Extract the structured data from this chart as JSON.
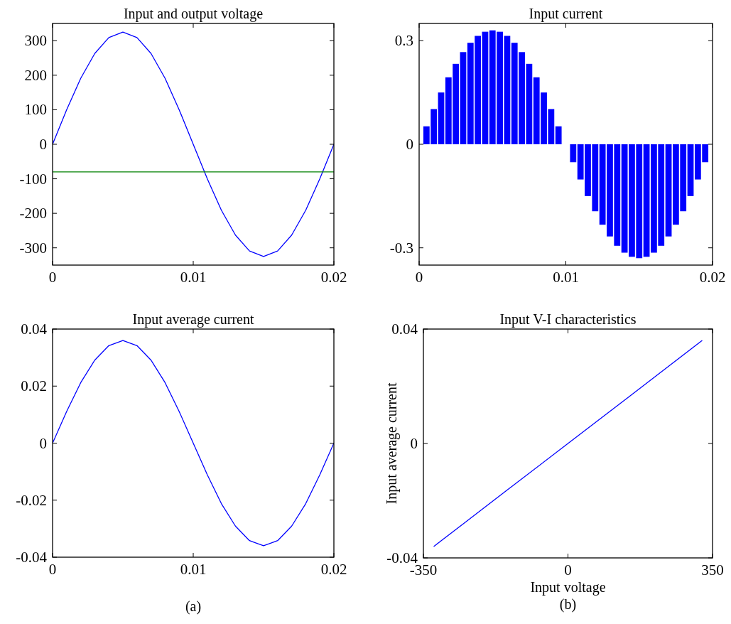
{
  "chart_data": [
    {
      "type": "line",
      "title": "Input and output voltage",
      "x": [
        0,
        0.001,
        0.002,
        0.003,
        0.004,
        0.005,
        0.006,
        0.007,
        0.008,
        0.009,
        0.01,
        0.011,
        0.012,
        0.013,
        0.014,
        0.015,
        0.016,
        0.017,
        0.018,
        0.019,
        0.02
      ],
      "xlim": [
        0,
        0.02
      ],
      "xticks": [
        0,
        0.01,
        0.02
      ],
      "ylim": [
        -350,
        350
      ],
      "yticks": [
        -300,
        -200,
        -100,
        0,
        100,
        200,
        300
      ],
      "series": [
        {
          "color": "#0000ff",
          "values": [
            0,
            100,
            191,
            263,
            309,
            325,
            309,
            263,
            191,
            100,
            0,
            -100,
            -191,
            -263,
            -309,
            -325,
            -309,
            -263,
            -191,
            -100,
            0
          ]
        },
        {
          "color": "#008000",
          "x": [
            0,
            0.02
          ],
          "values": [
            -80,
            -80
          ]
        }
      ]
    },
    {
      "type": "bar",
      "title": "Input current",
      "x": [
        0,
        0.0005,
        0.001,
        0.0015,
        0.002,
        0.0025,
        0.003,
        0.0035,
        0.004,
        0.0045,
        0.005,
        0.0055,
        0.006,
        0.0065,
        0.007,
        0.0075,
        0.008,
        0.0085,
        0.009,
        0.0095,
        0.01,
        0.0105,
        0.011,
        0.0115,
        0.012,
        0.0125,
        0.013,
        0.0135,
        0.014,
        0.0145,
        0.015,
        0.0155,
        0.016,
        0.0165,
        0.017,
        0.0175,
        0.018,
        0.0185,
        0.019,
        0.0195,
        0.02
      ],
      "xlim": [
        0,
        0.02
      ],
      "xticks": [
        0,
        0.01,
        0.02
      ],
      "ylim": [
        -0.35,
        0.35
      ],
      "yticks": [
        -0.3,
        0,
        0.3
      ],
      "series": [
        {
          "color": "#0000ff",
          "values": [
            0,
            0.052,
            0.102,
            0.15,
            0.194,
            0.233,
            0.267,
            0.294,
            0.314,
            0.326,
            0.33,
            0.326,
            0.314,
            0.294,
            0.267,
            0.233,
            0.194,
            0.15,
            0.102,
            0.052,
            0,
            -0.052,
            -0.102,
            -0.15,
            -0.194,
            -0.233,
            -0.267,
            -0.294,
            -0.314,
            -0.326,
            -0.33,
            -0.326,
            -0.314,
            -0.294,
            -0.267,
            -0.233,
            -0.194,
            -0.15,
            -0.102,
            -0.052,
            0
          ]
        }
      ]
    },
    {
      "type": "line",
      "title": "Input average current",
      "x": [
        0,
        0.001,
        0.002,
        0.003,
        0.004,
        0.005,
        0.006,
        0.007,
        0.008,
        0.009,
        0.01,
        0.011,
        0.012,
        0.013,
        0.014,
        0.015,
        0.016,
        0.017,
        0.018,
        0.019,
        0.02
      ],
      "xlim": [
        0,
        0.02
      ],
      "xticks": [
        0,
        0.01,
        0.02
      ],
      "ylim": [
        -0.04,
        0.04
      ],
      "yticks": [
        -0.04,
        -0.02,
        0,
        0.02,
        0.04
      ],
      "series": [
        {
          "color": "#0000ff",
          "values": [
            0,
            0.0111,
            0.0212,
            0.0291,
            0.0342,
            0.036,
            0.0342,
            0.0291,
            0.0212,
            0.0111,
            0,
            -0.0111,
            -0.0212,
            -0.0291,
            -0.0342,
            -0.036,
            -0.0342,
            -0.0291,
            -0.0212,
            -0.0111,
            0
          ]
        }
      ],
      "annotations": [
        "(a)"
      ]
    },
    {
      "type": "line",
      "title": "Input V-I characteristics",
      "xlabel": "Input voltage",
      "ylabel": "Input average current",
      "x": [
        -325,
        -250,
        -150,
        0,
        150,
        250,
        325
      ],
      "xlim": [
        -350,
        350
      ],
      "xticks": [
        -350,
        0,
        350
      ],
      "ylim": [
        -0.04,
        0.04
      ],
      "yticks": [
        -0.04,
        0,
        0.04
      ],
      "series": [
        {
          "color": "#0000ff",
          "values": [
            -0.036,
            -0.0277,
            -0.0166,
            0,
            0.0166,
            0.0277,
            0.036
          ]
        }
      ],
      "annotations": [
        "(b)"
      ]
    }
  ]
}
